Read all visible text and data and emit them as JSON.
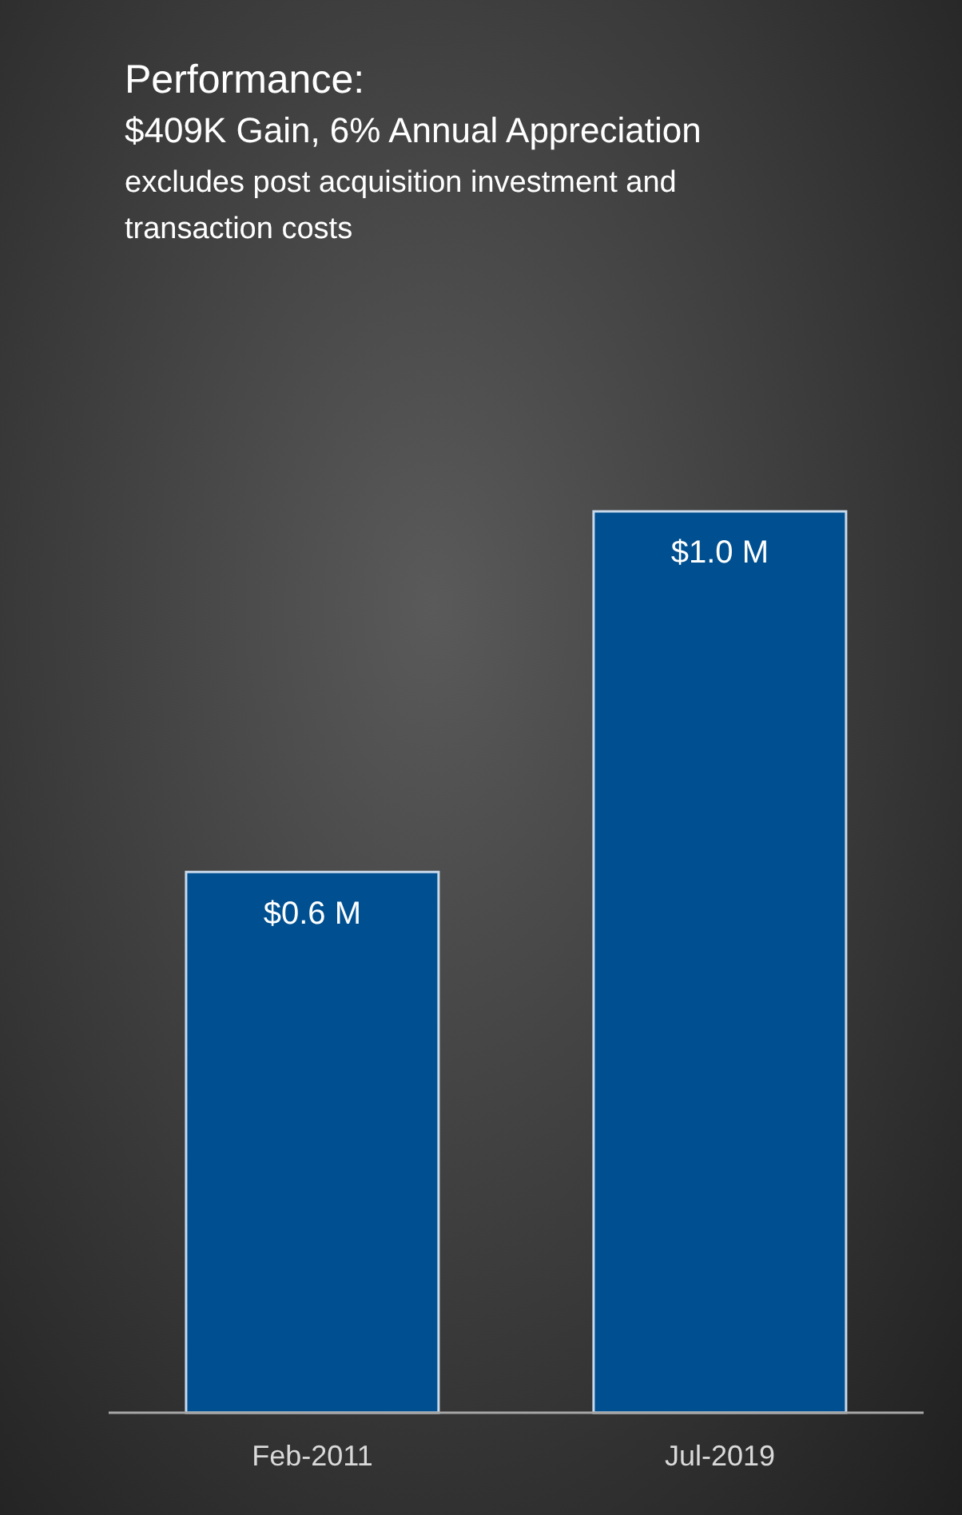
{
  "chart_data": {
    "type": "bar",
    "title": "Performance:",
    "subtitle": "$409K Gain, 6% Annual Appreciation",
    "annotations": [
      "excludes post acquisition investment and transaction costs"
    ],
    "categories": [
      "Feb-2011",
      "Jul-2019"
    ],
    "values": [
      0.6,
      1.0
    ],
    "value_labels": [
      "$0.6 M",
      "$1.0 M"
    ],
    "color": "#005091",
    "grid": false,
    "legend": false
  }
}
